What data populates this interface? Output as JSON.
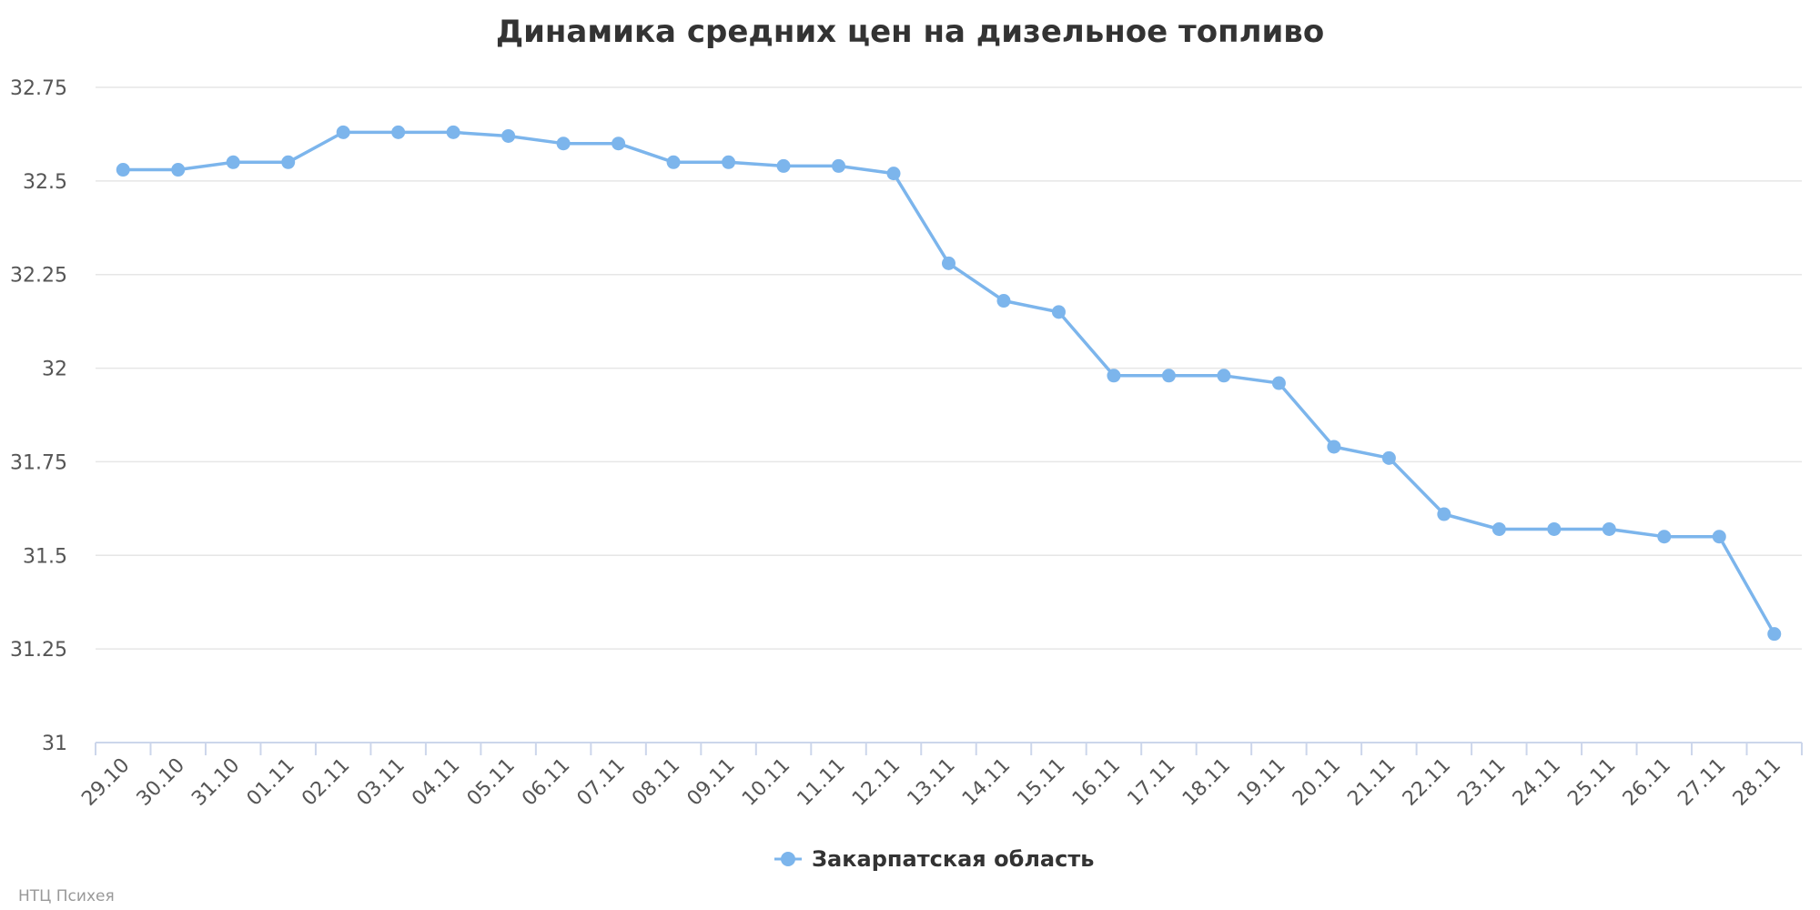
{
  "chart_data": {
    "type": "line",
    "title": "Динамика средних цен на дизельное топливо",
    "xlabel": "",
    "ylabel": "",
    "ylim": [
      31,
      32.75
    ],
    "yticks": [
      "32.75",
      "32.5",
      "32.25",
      "32",
      "31.75",
      "31.5",
      "31.25",
      "31"
    ],
    "ytick_values": [
      32.75,
      32.5,
      32.25,
      32,
      31.75,
      31.5,
      31.25,
      31
    ],
    "categories": [
      "29.10",
      "30.10",
      "31.10",
      "01.11",
      "02.11",
      "03.11",
      "04.11",
      "05.11",
      "06.11",
      "07.11",
      "08.11",
      "09.11",
      "10.11",
      "11.11",
      "12.11",
      "13.11",
      "14.11",
      "15.11",
      "16.11",
      "17.11",
      "18.11",
      "19.11",
      "20.11",
      "21.11",
      "22.11",
      "23.11",
      "24.11",
      "25.11",
      "26.11",
      "27.11",
      "28.11"
    ],
    "series": [
      {
        "name": "Закарпатская область",
        "color": "#7cb5ec",
        "values": [
          32.53,
          32.53,
          32.55,
          32.55,
          32.63,
          32.63,
          32.63,
          32.62,
          32.6,
          32.6,
          32.55,
          32.55,
          32.54,
          32.54,
          32.52,
          32.28,
          32.18,
          32.15,
          31.98,
          31.98,
          31.98,
          31.96,
          31.79,
          31.76,
          31.61,
          31.57,
          31.57,
          31.57,
          31.55,
          31.55,
          31.29
        ]
      }
    ],
    "grid": true,
    "legend_position": "bottom-center"
  },
  "credit": "НТЦ Психея"
}
